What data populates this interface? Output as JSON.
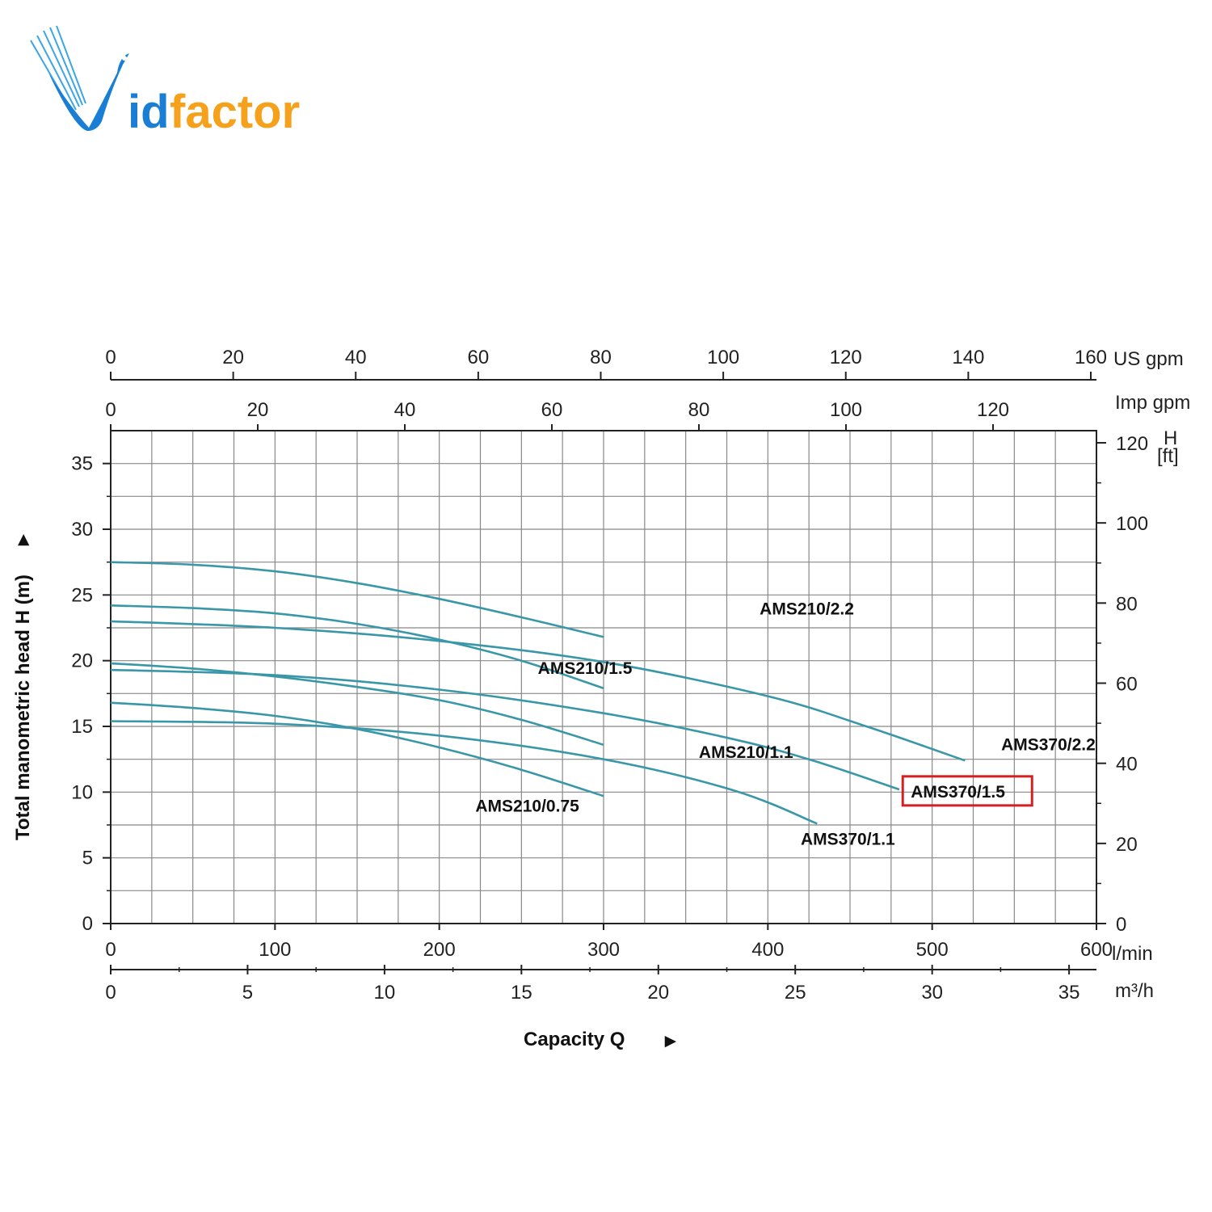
{
  "brand": {
    "name_part1": "id",
    "name_part2": "factor",
    "logo_letter": "V",
    "color_blue": "#1a7fd4",
    "color_orange": "#f5a11c"
  },
  "colors": {
    "curve": "#3a97a8",
    "grid": "#888888",
    "highlight": "#d42020"
  },
  "chart_data": {
    "type": "line",
    "title": "",
    "xlabel": "Capacity Q",
    "xlabel_arrow": "►",
    "ylabel": "Total manometric head H (m)",
    "ylabel_arrow": "►",
    "xlim": [
      0,
      600
    ],
    "ylim": [
      0,
      37.5
    ],
    "grid": true,
    "axes": {
      "x_lmin": {
        "unit": "l/min",
        "ticks": [
          "0",
          "100",
          "200",
          "300",
          "400",
          "500",
          "600"
        ],
        "tick_values": [
          0,
          100,
          200,
          300,
          400,
          500,
          600
        ]
      },
      "x_m3h": {
        "unit": "m³/h",
        "ticks": [
          "0",
          "5",
          "10",
          "15",
          "20",
          "25",
          "30",
          "35"
        ],
        "tick_values": [
          0,
          5,
          10,
          15,
          20,
          25,
          30,
          35
        ]
      },
      "x_usgpm": {
        "unit": "US gpm",
        "ticks": [
          "0",
          "20",
          "40",
          "60",
          "80",
          "100",
          "120",
          "140",
          "160"
        ],
        "tick_values": [
          0,
          20,
          40,
          60,
          80,
          100,
          120,
          140,
          160
        ]
      },
      "x_impgpm": {
        "unit": "Imp gpm",
        "ticks": [
          "0",
          "20",
          "40",
          "60",
          "80",
          "100",
          "120"
        ],
        "tick_values": [
          0,
          20,
          40,
          60,
          80,
          100,
          120
        ]
      },
      "y_m": {
        "ticks": [
          "0",
          "5",
          "10",
          "15",
          "20",
          "25",
          "30",
          "35"
        ],
        "tick_values": [
          0,
          5,
          10,
          15,
          20,
          25,
          30,
          35
        ]
      },
      "y_ft": {
        "unit_line1": "H",
        "unit_line2": "[ft]",
        "ticks": [
          "0",
          "20",
          "40",
          "60",
          "80",
          "100",
          "120"
        ],
        "tick_values": [
          0,
          20,
          40,
          60,
          80,
          100,
          120
        ]
      }
    },
    "series": [
      {
        "name": "AMS210/2.2",
        "x": [
          0,
          50,
          100,
          150,
          200,
          250,
          300
        ],
        "y": [
          27.5,
          27.3,
          26.8,
          25.9,
          24.7,
          23.3,
          21.8
        ],
        "label_at": [
          395,
          23.5
        ],
        "highlight": false
      },
      {
        "name": "AMS210/1.5",
        "x": [
          0,
          50,
          100,
          150,
          200,
          250,
          300
        ],
        "y": [
          24.2,
          24.0,
          23.6,
          22.8,
          21.6,
          20.0,
          17.9
        ],
        "label_at": [
          260,
          19.0
        ],
        "highlight": false
      },
      {
        "name": "AMS370/2.2",
        "x": [
          0,
          100,
          200,
          300,
          400,
          460,
          520
        ],
        "y": [
          23.0,
          22.5,
          21.5,
          19.9,
          17.3,
          15.0,
          12.4
        ],
        "label_at": [
          542,
          13.2
        ],
        "highlight": false
      },
      {
        "name": "AMS210/1.1",
        "x": [
          0,
          50,
          100,
          150,
          200,
          250,
          300
        ],
        "y": [
          19.8,
          19.4,
          18.8,
          18.0,
          17.0,
          15.5,
          13.6
        ],
        "label_at": [
          358,
          12.6
        ],
        "highlight": false
      },
      {
        "name": "AMS370/1.5",
        "x": [
          0,
          100,
          200,
          300,
          380,
          430,
          480
        ],
        "y": [
          19.3,
          18.9,
          17.8,
          16.0,
          14.0,
          12.3,
          10.2
        ],
        "label_at": [
          487,
          9.6
        ],
        "highlight": true
      },
      {
        "name": "AMS210/0.75",
        "x": [
          0,
          50,
          100,
          150,
          200,
          250,
          300
        ],
        "y": [
          16.8,
          16.4,
          15.8,
          14.8,
          13.4,
          11.7,
          9.7
        ],
        "label_at": [
          222,
          8.5
        ],
        "highlight": false
      },
      {
        "name": "AMS370/1.1",
        "x": [
          0,
          100,
          200,
          300,
          380,
          430
        ],
        "y": [
          15.4,
          15.2,
          14.3,
          12.5,
          10.1,
          7.6
        ],
        "label_at": [
          420,
          6.0
        ],
        "highlight": false
      }
    ]
  }
}
